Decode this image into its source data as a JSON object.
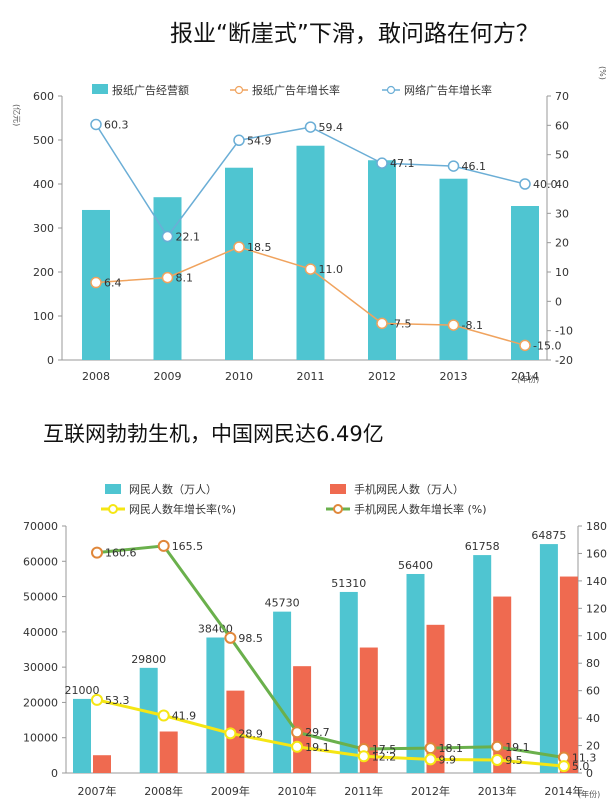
{
  "chart_data": [
    {
      "type": "bar",
      "title": "报业“断崖式”下滑，敢问路在何方？",
      "categories": [
        "2008",
        "2009",
        "2010",
        "2011",
        "2012",
        "2013",
        "2014"
      ],
      "x_unit": "(年份)",
      "y_left_unit": "(亿元)",
      "y_right_unit": "(%)",
      "ylim_left": [
        0,
        600
      ],
      "ylim_right": [
        -20,
        70
      ],
      "left_ticks": [
        "0",
        "100",
        "200",
        "300",
        "400",
        "500",
        "600"
      ],
      "right_ticks": [
        "-20",
        "-10",
        "0",
        "10",
        "20",
        "30",
        "40",
        "50",
        "60",
        "70"
      ],
      "grid": false,
      "legend_position": "top",
      "series": [
        {
          "name": "报纸广告经营额",
          "kind": "bar",
          "axis": "left",
          "color": "#4fc5d1",
          "values": [
            341,
            370,
            437,
            487,
            454,
            412,
            350
          ]
        },
        {
          "name": "报纸广告年增长率",
          "kind": "line",
          "axis": "right",
          "color": "#f0a35e",
          "values": [
            6.4,
            8.1,
            18.5,
            11.0,
            -7.5,
            -8.1,
            -15.0
          ],
          "labels": [
            "6.4",
            "8.1",
            "18.5",
            "11.0",
            "-7.5",
            "-8.1",
            "-15.0"
          ]
        },
        {
          "name": "网络广告年增长率",
          "kind": "line",
          "axis": "right",
          "color": "#6baed6",
          "values": [
            60.3,
            22.1,
            54.9,
            59.4,
            47.1,
            46.1,
            40.0
          ],
          "labels": [
            "60.3",
            "22.1",
            "54.9",
            "59.4",
            "47.1",
            "46.1",
            "40.0"
          ]
        }
      ]
    },
    {
      "type": "bar",
      "title": "互联网勃勃生机，中国网民达6.49亿",
      "categories": [
        "2007年",
        "2008年",
        "2009年",
        "2010年",
        "2011年",
        "2012年",
        "2013年",
        "2014年"
      ],
      "x_unit": "(年份)",
      "ylim_left": [
        0,
        70000
      ],
      "ylim_right": [
        0,
        180
      ],
      "left_ticks": [
        "0",
        "10000",
        "20000",
        "30000",
        "40000",
        "50000",
        "60000",
        "70000"
      ],
      "right_ticks": [
        "0",
        "20",
        "40",
        "60",
        "80",
        "100",
        "120",
        "140",
        "160",
        "180"
      ],
      "grid": false,
      "legend_position": "top",
      "series": [
        {
          "name": "网民人数（万人）",
          "kind": "bar",
          "axis": "left",
          "color": "#4fc5d1",
          "values": [
            21000,
            29800,
            38400,
            45730,
            51310,
            56400,
            61758,
            64875
          ],
          "labels": [
            "21000",
            "29800",
            "38400",
            "45730",
            "51310",
            "56400",
            "61758",
            "64875"
          ]
        },
        {
          "name": "手机网民人数（万人）",
          "kind": "bar",
          "axis": "left",
          "color": "#ef6a50",
          "values": [
            5040,
            11760,
            23344,
            30274,
            35558,
            41997,
            50006,
            55678
          ]
        },
        {
          "name": "网民人数年增长率(%)",
          "kind": "line",
          "axis": "right",
          "color": "#f5e614",
          "values": [
            53.3,
            41.9,
            28.9,
            19.1,
            12.2,
            9.9,
            9.5,
            5.0
          ],
          "labels": [
            "53.3",
            "41.9",
            "28.9",
            "19.1",
            "12.2",
            "9.9",
            "9.5",
            "5.0"
          ]
        },
        {
          "name": "手机网民人数年增长率 (%)",
          "kind": "line",
          "axis": "right",
          "color": "#6ab04c",
          "marker_color": "#e0873a",
          "values": [
            160.6,
            165.5,
            98.5,
            29.7,
            17.5,
            18.1,
            19.1,
            11.3
          ],
          "labels": [
            "160.6",
            "165.5",
            "98.5",
            "29.7",
            "17.5",
            "18.1",
            "19.1",
            "11.3"
          ]
        }
      ]
    }
  ]
}
